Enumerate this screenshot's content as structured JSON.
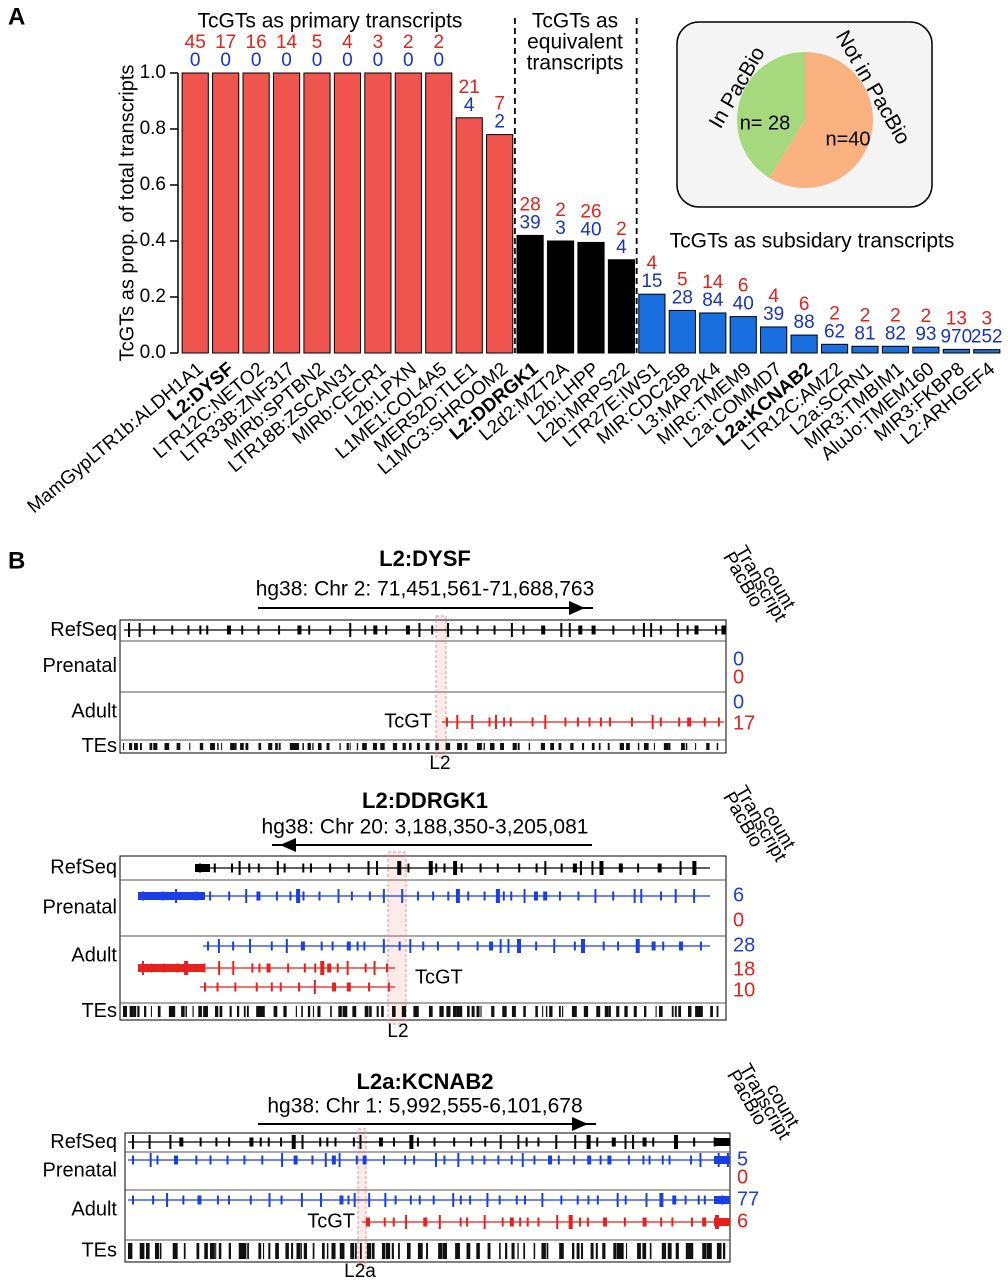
{
  "panels": [
    "A",
    "B"
  ],
  "chart_data": [
    {
      "type": "bar",
      "y_label": "TcGTs as prop. of total transcripts",
      "group_labels": [
        [
          "TcGTs as primary transcripts"
        ],
        [
          "TcGTs as",
          "equivalent",
          "transcripts"
        ],
        [
          "TcGTs as subsidary transcripts"
        ]
      ],
      "categories": [
        "MamGypLTR1b:ALDH1A1",
        "L2:DYSF",
        "LTR12C:NETO2",
        "LTR33B:ZNF317",
        "MIRb:SPTBN2",
        "LTR18B:ZSCAN31",
        "MIRb:CECR1",
        "L2b:LPXN",
        "L1ME1:COL4A5",
        "MER52D:TLE1",
        "L1MC3:SHROOM2",
        "L2:DDRGK1",
        "L2d2:MZT2A",
        "L2b:LHPP",
        "L2b:MRPS22",
        "LTR27E:IWS1",
        "MIR:CDC25B",
        "L3:MAP2K4",
        "MIRc:TMEM9",
        "L2a:COMMD7",
        "L2a:KCNAB2",
        "LTR12C:AMZ2",
        "L2a:SCRN1",
        "MIR3:TMBIM1",
        "AluJo:TMEM160",
        "MIR3:FKBP8",
        "L2:ARHGEF4"
      ],
      "values": [
        1.0,
        1.0,
        1.0,
        1.0,
        1.0,
        1.0,
        1.0,
        1.0,
        1.0,
        0.84,
        0.78,
        0.42,
        0.4,
        0.395,
        0.333,
        0.21,
        0.152,
        0.143,
        0.13,
        0.093,
        0.064,
        0.031,
        0.024,
        0.024,
        0.021,
        0.013,
        0.012
      ],
      "colors": [
        "#f0544f",
        "#f0544f",
        "#f0544f",
        "#f0544f",
        "#f0544f",
        "#f0544f",
        "#f0544f",
        "#f0544f",
        "#f0544f",
        "#f0544f",
        "#f0544f",
        "#000000",
        "#000000",
        "#000000",
        "#000000",
        "#1a6fe0",
        "#1a6fe0",
        "#1a6fe0",
        "#1a6fe0",
        "#1a6fe0",
        "#1a6fe0",
        "#1a6fe0",
        "#1a6fe0",
        "#1a6fe0",
        "#1a6fe0",
        "#1a6fe0",
        "#1a6fe0"
      ],
      "red_counts": [
        45,
        17,
        16,
        14,
        5,
        4,
        3,
        2,
        2,
        21,
        7,
        28,
        2,
        26,
        2,
        4,
        5,
        14,
        6,
        4,
        6,
        2,
        2,
        2,
        2,
        13,
        3
      ],
      "blue_counts": [
        0,
        0,
        0,
        0,
        0,
        0,
        0,
        0,
        0,
        4,
        2,
        39,
        3,
        40,
        4,
        15,
        28,
        84,
        40,
        39,
        88,
        62,
        81,
        82,
        93,
        970,
        252
      ],
      "bold": [
        1,
        11,
        20
      ],
      "group_breaks": [
        11,
        15
      ],
      "ylim": [
        0,
        1.0
      ],
      "yticks": [
        {
          "value": 0,
          "label": "0.0"
        },
        0.2,
        0.4,
        0.6,
        0.8,
        {
          "value": 1,
          "label": "1.0"
        }
      ]
    },
    {
      "type": "pie",
      "names": [
        "Not in PacBio",
        "In PacBio"
      ],
      "values": [
        40,
        28
      ],
      "value_labels": [
        "n=40",
        "n= 28"
      ],
      "colors": [
        "#f9b27f",
        "#a6d97e"
      ]
    }
  ],
  "loci": [
    {
      "title": "L2:DYSF",
      "coords": "hg38: Chr 2: 71,451,561-71,688,763",
      "te_label": "L2",
      "direction": "right",
      "counts": [
        {
          "row": "Prenatal",
          "values": [
            0,
            0
          ]
        },
        {
          "row": "Adult",
          "values": [
            0,
            17
          ]
        }
      ]
    },
    {
      "title": "L2:DDRGK1",
      "coords": "hg38: Chr 20: 3,188,350-3,205,081",
      "te_label": "L2",
      "direction": "left",
      "counts": [
        {
          "row": "Prenatal",
          "values": [
            6,
            0
          ]
        },
        {
          "row": "Adult",
          "values": [
            28,
            18,
            10
          ]
        }
      ]
    },
    {
      "title": "L2a:KCNAB2",
      "coords": "hg38: Chr 1: 5,992,555-6,101,678",
      "te_label": "L2a",
      "direction": "right",
      "counts": [
        {
          "row": "Prenatal",
          "values": [
            5,
            0
          ]
        },
        {
          "row": "Adult",
          "values": [
            77,
            6
          ]
        }
      ]
    }
  ],
  "track_labels": [
    "RefSeq",
    "Prenatal",
    "Adult",
    "TEs"
  ],
  "tcgt_label": "TcGT",
  "count_header": [
    "PacBio",
    "Transcript",
    "count"
  ]
}
